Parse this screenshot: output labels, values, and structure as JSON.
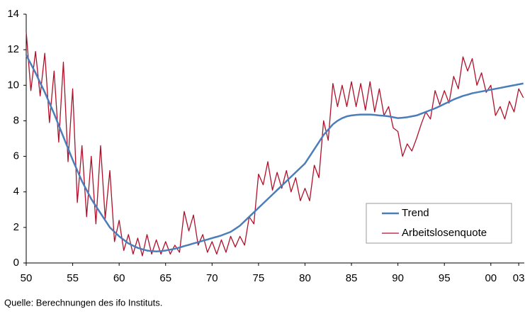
{
  "chart_data": {
    "type": "line",
    "source": "Quelle: Berechnungen des ifo Instituts.",
    "x": [
      1950,
      1950.5,
      1951,
      1951.5,
      1952,
      1952.5,
      1953,
      1953.5,
      1954,
      1954.5,
      1955,
      1955.5,
      1956,
      1956.5,
      1957,
      1957.5,
      1958,
      1958.5,
      1959,
      1959.5,
      1960,
      1960.5,
      1961,
      1961.5,
      1962,
      1962.5,
      1963,
      1963.5,
      1964,
      1964.5,
      1965,
      1965.5,
      1966,
      1966.5,
      1967,
      1967.5,
      1968,
      1968.5,
      1969,
      1969.5,
      1970,
      1970.5,
      1971,
      1971.5,
      1972,
      1972.5,
      1973,
      1973.5,
      1974,
      1974.5,
      1975,
      1975.5,
      1976,
      1976.5,
      1977,
      1977.5,
      1978,
      1978.5,
      1979,
      1979.5,
      1980,
      1980.5,
      1981,
      1981.5,
      1982,
      1982.5,
      1983,
      1983.5,
      1984,
      1984.5,
      1985,
      1985.5,
      1986,
      1986.5,
      1987,
      1987.5,
      1988,
      1988.5,
      1989,
      1989.5,
      1990,
      1990.5,
      1991,
      1991.5,
      1992,
      1992.5,
      1993,
      1993.5,
      1994,
      1994.5,
      1995,
      1995.5,
      1996,
      1996.5,
      1997,
      1997.5,
      1998,
      1998.5,
      1999,
      1999.5,
      2000,
      2000.5,
      2001,
      2001.5,
      2002,
      2002.5,
      2003,
      2003.5
    ],
    "series": [
      {
        "name": "Trend",
        "color": "#4a7ebb",
        "width": 2.5,
        "values": [
          11.7,
          11.2,
          10.7,
          10.15,
          9.6,
          9.0,
          8.4,
          7.75,
          7.1,
          6.45,
          5.8,
          5.2,
          4.6,
          4.1,
          3.6,
          3.2,
          2.8,
          2.4,
          2.0,
          1.75,
          1.5,
          1.3,
          1.1,
          0.97,
          0.85,
          0.77,
          0.7,
          0.67,
          0.65,
          0.67,
          0.7,
          0.75,
          0.8,
          0.87,
          0.95,
          1.02,
          1.1,
          1.17,
          1.25,
          1.32,
          1.4,
          1.47,
          1.55,
          1.65,
          1.75,
          1.92,
          2.1,
          2.35,
          2.6,
          2.85,
          3.1,
          3.35,
          3.6,
          3.85,
          4.1,
          4.35,
          4.6,
          4.85,
          5.1,
          5.35,
          5.6,
          6.0,
          6.4,
          6.8,
          7.2,
          7.5,
          7.8,
          8.0,
          8.15,
          8.25,
          8.3,
          8.33,
          8.35,
          8.35,
          8.35,
          8.33,
          8.3,
          8.28,
          8.25,
          8.2,
          8.15,
          8.17,
          8.2,
          8.25,
          8.3,
          8.4,
          8.5,
          8.6,
          8.7,
          8.82,
          8.95,
          9.07,
          9.2,
          9.3,
          9.4,
          9.47,
          9.55,
          9.6,
          9.65,
          9.7,
          9.75,
          9.8,
          9.85,
          9.9,
          9.95,
          10.0,
          10.05,
          10.1
        ]
      },
      {
        "name": "Arbeitslosenquote",
        "color": "#b0102a",
        "width": 1.3,
        "values": [
          13.0,
          9.7,
          11.9,
          9.4,
          11.8,
          7.9,
          10.8,
          6.8,
          11.3,
          5.7,
          9.8,
          3.4,
          6.6,
          2.6,
          6.0,
          2.2,
          6.6,
          2.5,
          5.2,
          1.2,
          2.4,
          0.7,
          1.6,
          0.5,
          1.4,
          0.4,
          1.6,
          0.5,
          1.3,
          0.5,
          1.2,
          0.5,
          1.0,
          0.6,
          2.9,
          1.8,
          2.7,
          1.0,
          1.6,
          0.6,
          1.2,
          0.5,
          1.3,
          0.6,
          1.5,
          0.9,
          1.5,
          1.0,
          2.6,
          2.2,
          5.0,
          4.4,
          5.7,
          4.1,
          5.1,
          4.2,
          5.2,
          4.0,
          4.8,
          3.5,
          4.2,
          3.5,
          5.5,
          4.8,
          8.0,
          6.9,
          10.1,
          8.8,
          10.0,
          8.8,
          10.2,
          8.8,
          10.1,
          8.6,
          10.2,
          8.5,
          9.8,
          8.3,
          8.8,
          7.6,
          7.4,
          6.0,
          6.7,
          6.3,
          7.0,
          7.8,
          8.5,
          8.1,
          9.7,
          8.9,
          9.7,
          9.0,
          10.5,
          9.8,
          11.6,
          10.8,
          11.5,
          10.0,
          10.7,
          9.6,
          10.0,
          8.3,
          8.8,
          8.1,
          9.1,
          8.5,
          9.8,
          9.3
        ]
      }
    ],
    "xlim": [
      1950,
      2003.6
    ],
    "xticks": [
      {
        "value": 1950,
        "label": "50"
      },
      {
        "value": 1955,
        "label": "55"
      },
      {
        "value": 1960,
        "label": "60"
      },
      {
        "value": 1965,
        "label": "65"
      },
      {
        "value": 1970,
        "label": "70"
      },
      {
        "value": 1975,
        "label": "75"
      },
      {
        "value": 1980,
        "label": "80"
      },
      {
        "value": 1985,
        "label": "85"
      },
      {
        "value": 1990,
        "label": "90"
      },
      {
        "value": 1995,
        "label": "95"
      },
      {
        "value": 2000,
        "label": "00"
      },
      {
        "value": 2003,
        "label": "03"
      }
    ],
    "ylim": [
      0,
      14
    ],
    "yticks": [
      0,
      2,
      4,
      6,
      8,
      10,
      12,
      14
    ],
    "legend": "bottom-right"
  }
}
